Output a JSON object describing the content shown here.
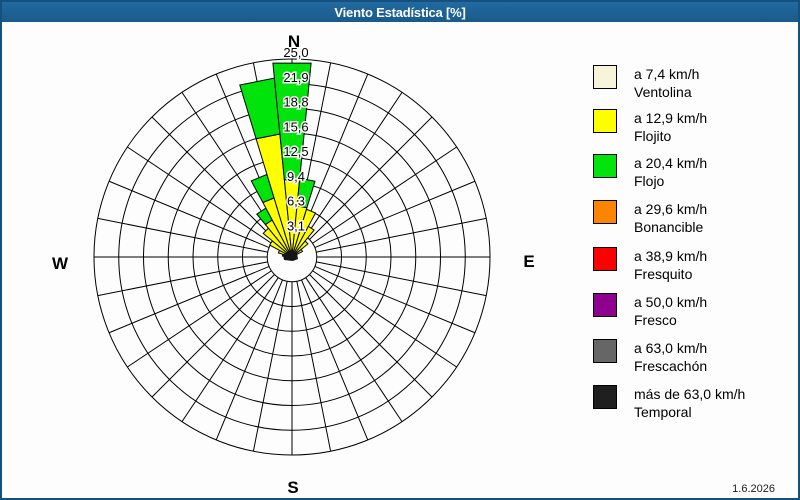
{
  "window": {
    "title": "Viento Estadística [%]",
    "date": "1.6.2026"
  },
  "compass": {
    "north": "N",
    "east": "E",
    "south": "S",
    "west": "W"
  },
  "chart_data": {
    "type": "windrose",
    "unit": "% frequency",
    "r_max": 25,
    "rings": [
      3.125,
      6.25,
      9.375,
      12.5,
      15.625,
      18.75,
      21.875,
      25
    ],
    "ring_labels": [
      "3,1",
      "6,3",
      "9,4",
      "12,5",
      "15,6",
      "18,8",
      "21,9",
      "25,0"
    ],
    "sector_count": 32,
    "sector_width_deg": 11.25,
    "grid_color": "#000000",
    "colors": {
      "ventolina": "#F8F4D9",
      "flojito": "#FFFF00",
      "flojo": "#00E40C"
    },
    "wedges": [
      {
        "dir": "WbN",
        "deg": -78.75,
        "flojito": 1.2,
        "flojo": null
      },
      {
        "dir": "WNW",
        "deg": -67.5,
        "flojito": 1.8,
        "flojo": null
      },
      {
        "dir": "NWbW",
        "deg": -56.25,
        "flojito": 3.2,
        "flojo": null
      },
      {
        "dir": "NW",
        "deg": -45,
        "flojito": 4.7,
        "flojo": null
      },
      {
        "dir": "NWbN",
        "deg": -33.75,
        "flojito": 5.3,
        "flojo": 7.0
      },
      {
        "dir": "NNW",
        "deg": -22.5,
        "flojito": 7.8,
        "flojo": 10.9
      },
      {
        "dir": "NbW",
        "deg": -11.25,
        "flojito": 15.6,
        "flojo": 22.7
      },
      {
        "dir": "N",
        "deg": 0,
        "flojito": 9.8,
        "flojo": 24.6
      },
      {
        "dir": "NbE",
        "deg": 11.25,
        "flojito": 6.5,
        "flojo": 10.0
      },
      {
        "dir": "NNE",
        "deg": 22.5,
        "flojito": 6.3,
        "flojo": null
      },
      {
        "dir": "NEbN",
        "deg": 33.75,
        "flojito": 4.4,
        "flojo": null
      },
      {
        "dir": "NE",
        "deg": 45,
        "flojito": 2.6,
        "flojo": null
      },
      {
        "dir": "NEbE",
        "deg": 56.25,
        "flojito": 1.5,
        "flojo": null
      }
    ]
  },
  "legend": {
    "items": [
      {
        "color": "#F8F4D9",
        "speed": "a 7,4 km/h",
        "name": "Ventolina"
      },
      {
        "color": "#FFFF00",
        "speed": "a 12,9 km/h",
        "name": "Flojito"
      },
      {
        "color": "#00E40C",
        "speed": "a 20,4 km/h",
        "name": "Flojo"
      },
      {
        "color": "#FB8500",
        "speed": "a 29,6 km/h",
        "name": "Bonancible"
      },
      {
        "color": "#FF0000",
        "speed": "a 38,9 km/h",
        "name": "Fresquito"
      },
      {
        "color": "#8E008E",
        "speed": "a 50,0 km/h",
        "name": "Fresco"
      },
      {
        "color": "#666666",
        "speed": "a 63,0 km/h",
        "name": "Frescachón"
      },
      {
        "color": "#1F1F1F",
        "speed": "más de 63,0 km/h",
        "name": "Temporal"
      }
    ]
  }
}
